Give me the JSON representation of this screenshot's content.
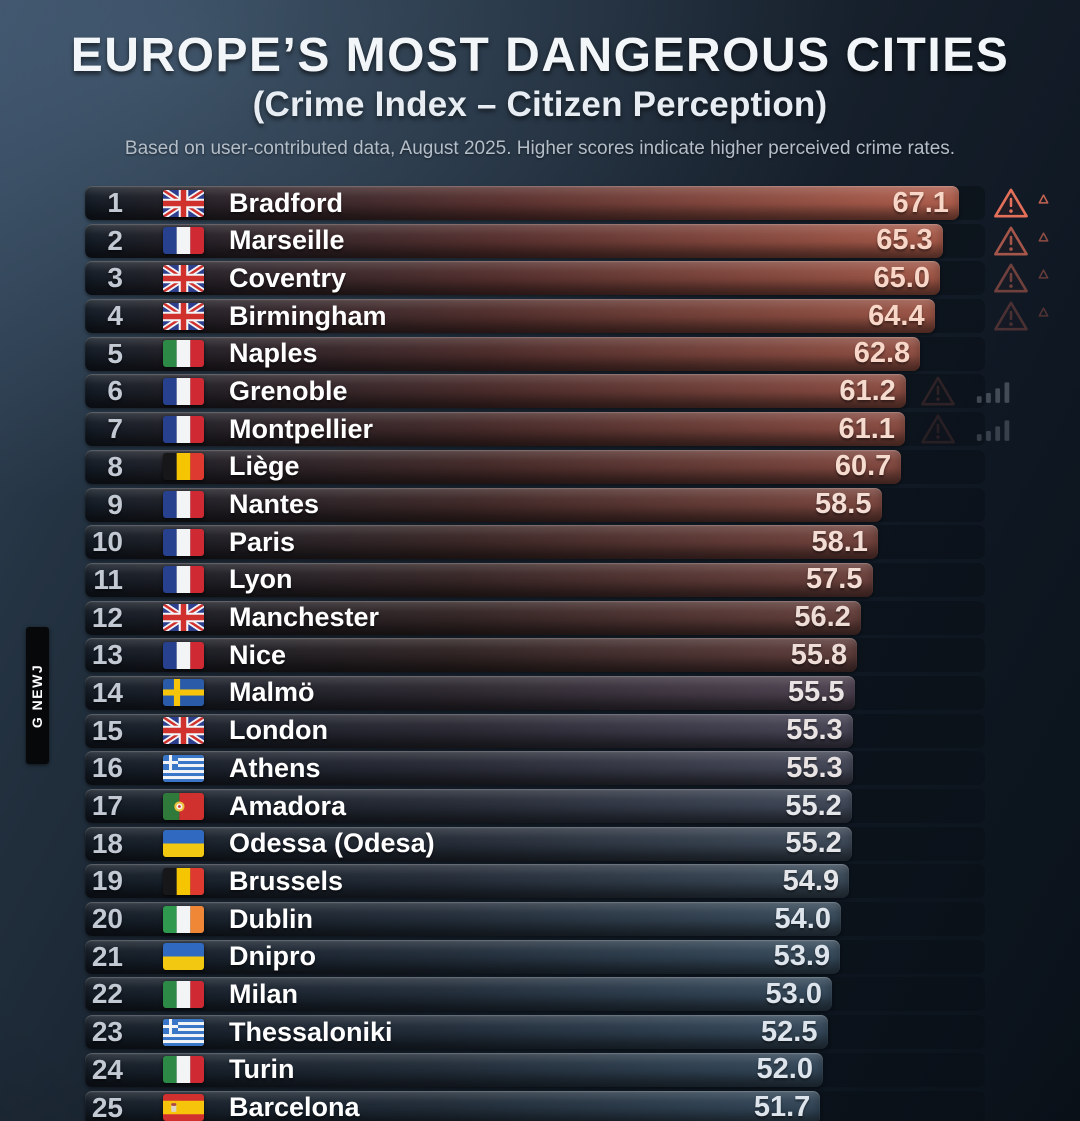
{
  "title": "EUROPE’S MOST DANGEROUS CITIES",
  "subtitle": "(Crime Index – Citizen Perception)",
  "note": "Based on user-contributed data, August 2025. Higher scores indicate higher perceived crime rates.",
  "watermark": "G NEWJ",
  "colors": {
    "background_top": "#35495f",
    "background_bottom": "#0a1119",
    "warning_accent": "#e4705a",
    "rank_text": "#c3c9d3",
    "city_text": "#ffffff"
  },
  "chart_data": {
    "type": "bar",
    "orientation": "horizontal",
    "title": "EUROPE’S MOST DANGEROUS CITIES",
    "subtitle": "(Crime Index – Citizen Perception)",
    "value_label": "Crime Index",
    "xlim": [
      0,
      70
    ],
    "rows": [
      {
        "rank": 1,
        "city": "Bradford",
        "country": "united-kingdom",
        "flag": "gb",
        "value": 67.1,
        "bar": {
          "c1": "#5a3230",
          "c2": "#b2604e"
        },
        "score_color": "#f8d7c9",
        "icons": {
          "warning": 1.0,
          "caret": 0.85
        }
      },
      {
        "rank": 2,
        "city": "Marseille",
        "country": "france",
        "flag": "fr",
        "value": 65.3,
        "bar": {
          "c1": "#56302e",
          "c2": "#a95b4a"
        },
        "score_color": "#f8d7c9",
        "icons": {
          "warning": 0.7,
          "caret": 0.6
        }
      },
      {
        "rank": 3,
        "city": "Coventry",
        "country": "united-kingdom",
        "flag": "gb",
        "value": 65.0,
        "bar": {
          "c1": "#532f2d",
          "c2": "#a25848"
        },
        "score_color": "#f8d7c9",
        "icons": {
          "warning": 0.45,
          "caret": 0.4
        }
      },
      {
        "rank": 4,
        "city": "Birmingham",
        "country": "united-kingdom",
        "flag": "gb",
        "value": 64.4,
        "bar": {
          "c1": "#502e2c",
          "c2": "#9c5546"
        },
        "score_color": "#f8d7c9",
        "icons": {
          "warning": 0.28,
          "caret": 0.3
        }
      },
      {
        "rank": 5,
        "city": "Naples",
        "country": "italy",
        "flag": "it",
        "value": 62.8,
        "bar": {
          "c1": "#4c2c2b",
          "c2": "#955245"
        },
        "score_color": "#f8d7c9",
        "icons": {}
      },
      {
        "rank": 6,
        "city": "Grenoble",
        "country": "france",
        "flag": "fr",
        "value": 61.2,
        "bar": {
          "c1": "#482b2a",
          "c2": "#8e4e43"
        },
        "score_color": "#f6dbcf",
        "icons": {
          "warning": 0.16,
          "trend": 0.32
        }
      },
      {
        "rank": 7,
        "city": "Montpellier",
        "country": "france",
        "flag": "fr",
        "value": 61.1,
        "bar": {
          "c1": "#452a29",
          "c2": "#8a4c42"
        },
        "score_color": "#f6dbcf",
        "icons": {
          "warning": 0.13,
          "trend": 0.26
        }
      },
      {
        "rank": 8,
        "city": "Liège",
        "country": "belgium",
        "flag": "be",
        "value": 60.7,
        "bar": {
          "c1": "#422928",
          "c2": "#844a41"
        },
        "score_color": "#f6dbcf",
        "icons": {}
      },
      {
        "rank": 9,
        "city": "Nantes",
        "country": "france",
        "flag": "fr",
        "value": 58.5,
        "bar": {
          "c1": "#3e2827",
          "c2": "#7c473f"
        },
        "score_color": "#f3ddd4",
        "icons": {}
      },
      {
        "rank": 10,
        "city": "Paris",
        "country": "france",
        "flag": "fr",
        "value": 58.1,
        "bar": {
          "c1": "#3a2726",
          "c2": "#75443e"
        },
        "score_color": "#f3ddd4",
        "icons": {}
      },
      {
        "rank": 11,
        "city": "Lyon",
        "country": "france",
        "flag": "fr",
        "value": 57.5,
        "bar": {
          "c1": "#372626",
          "c2": "#6e423d"
        },
        "score_color": "#f3ddd4",
        "icons": {}
      },
      {
        "rank": 12,
        "city": "Manchester",
        "country": "united-kingdom",
        "flag": "gb",
        "value": 56.2,
        "bar": {
          "c1": "#332525",
          "c2": "#66403c"
        },
        "score_color": "#eedcd6",
        "icons": {}
      },
      {
        "rank": 13,
        "city": "Nice",
        "country": "france",
        "flag": "fr",
        "value": 55.8,
        "bar": {
          "c1": "#302424",
          "c2": "#5f3e3c"
        },
        "score_color": "#eedcd6",
        "icons": {}
      },
      {
        "rank": 14,
        "city": "Malmö",
        "country": "sweden",
        "flag": "se",
        "value": 55.5,
        "bar": {
          "c1": "#2d2830",
          "c2": "#4e4250"
        },
        "score_color": "#e9e3e3",
        "icons": {}
      },
      {
        "rank": 15,
        "city": "London",
        "country": "united-kingdom",
        "flag": "gb",
        "value": 55.3,
        "bar": {
          "c1": "#2a2933",
          "c2": "#484556"
        },
        "score_color": "#e9e3e3",
        "icons": {}
      },
      {
        "rank": 16,
        "city": "Athens",
        "country": "greece",
        "flag": "gr",
        "value": 55.3,
        "bar": {
          "c1": "#282a35",
          "c2": "#444757"
        },
        "score_color": "#e9e3e3",
        "icons": {}
      },
      {
        "rank": 17,
        "city": "Amadora",
        "country": "portugal",
        "flag": "pt",
        "value": 55.2,
        "bar": {
          "c1": "#262b36",
          "c2": "#404858"
        },
        "score_color": "#e4e6ea",
        "icons": {}
      },
      {
        "rank": 18,
        "city": "Odessa (Odesa)",
        "country": "ukraine",
        "flag": "ua",
        "value": 55.2,
        "bar": {
          "c1": "#252c37",
          "c2": "#3d4958"
        },
        "score_color": "#e4e6ea",
        "icons": {}
      },
      {
        "rank": 19,
        "city": "Brussels",
        "country": "belgium",
        "flag": "be",
        "value": 54.9,
        "bar": {
          "c1": "#242c38",
          "c2": "#3b4a59"
        },
        "score_color": "#e4e6ea",
        "icons": {}
      },
      {
        "rank": 20,
        "city": "Dublin",
        "country": "ireland",
        "flag": "ie",
        "value": 54.0,
        "bar": {
          "c1": "#232d39",
          "c2": "#394b5b"
        },
        "score_color": "#dde4ec",
        "icons": {}
      },
      {
        "rank": 21,
        "city": "Dnipro",
        "country": "ukraine",
        "flag": "ua",
        "value": 53.9,
        "bar": {
          "c1": "#222d3a",
          "c2": "#374b5c"
        },
        "score_color": "#dde4ec",
        "icons": {}
      },
      {
        "rank": 22,
        "city": "Milan",
        "country": "italy",
        "flag": "it",
        "value": 53.0,
        "bar": {
          "c1": "#222d3a",
          "c2": "#364a5c"
        },
        "score_color": "#dde4ec",
        "icons": {}
      },
      {
        "rank": 23,
        "city": "Thessaloniki",
        "country": "greece",
        "flag": "gr",
        "value": 52.5,
        "bar": {
          "c1": "#212c39",
          "c2": "#35495b"
        },
        "score_color": "#dde4ec",
        "icons": {}
      },
      {
        "rank": 24,
        "city": "Turin",
        "country": "italy",
        "flag": "it",
        "value": 52.0,
        "bar": {
          "c1": "#212c38",
          "c2": "#34485a"
        },
        "score_color": "#dde4ec",
        "icons": {}
      },
      {
        "rank": 25,
        "city": "Barcelona",
        "country": "spain",
        "flag": "es",
        "value": 51.7,
        "bar": {
          "c1": "#202b37",
          "c2": "#334759"
        },
        "score_color": "#dde4ec",
        "icons": {}
      }
    ]
  }
}
